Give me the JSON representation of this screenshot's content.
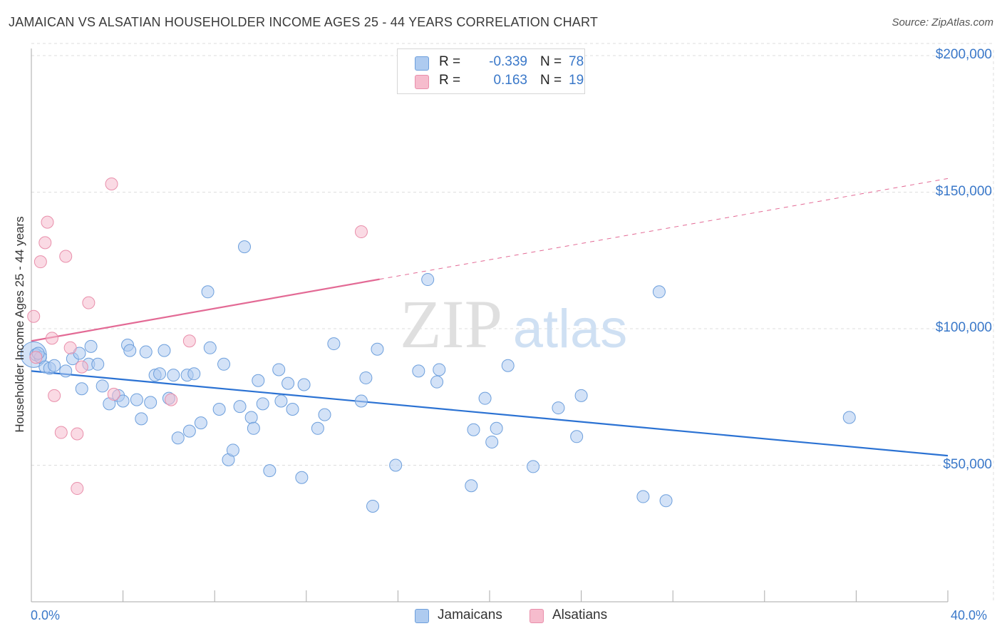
{
  "title": "JAMAICAN VS ALSATIAN HOUSEHOLDER INCOME AGES 25 - 44 YEARS CORRELATION CHART",
  "source": "Source: ZipAtlas.com",
  "watermark": {
    "zip": "ZIP",
    "atlas": "atlas"
  },
  "colors": {
    "blue_fill": "#aecbf0",
    "blue_stroke": "#6d9fdc",
    "blue_line": "#2b72d3",
    "pink_fill": "#f6bccd",
    "pink_stroke": "#e98fab",
    "pink_line": "#e36a95",
    "axis_text": "#3a78c9",
    "grid": "#dddddd"
  },
  "legend": {
    "rows": [
      {
        "label": "R = ",
        "r": "-0.339",
        "n_label": "N = ",
        "n": "78"
      },
      {
        "label": "R = ",
        "r": "0.163",
        "n_label": "N = ",
        "n": "19"
      }
    ]
  },
  "bottom_legend": {
    "jamaicans": "Jamaicans",
    "alsatians": "Alsatians"
  },
  "chart_data": {
    "type": "scatter",
    "title": "JAMAICAN VS ALSATIAN HOUSEHOLDER INCOME AGES 25 - 44 YEARS CORRELATION CHART",
    "xlabel": "",
    "ylabel": "Householder Income Ages 25 - 44 years",
    "xlim": [
      0,
      40
    ],
    "ylim": [
      0,
      205000
    ],
    "x_tick_labels": [
      "0.0%",
      "40.0%"
    ],
    "y_ticks": [
      50000,
      100000,
      150000,
      200000
    ],
    "y_tick_labels": [
      "$50,000",
      "$100,000",
      "$150,000",
      "$200,000"
    ],
    "grid": true,
    "legend_position": "top-center",
    "series": [
      {
        "name": "Jamaicans",
        "color": "#aecbf0",
        "trend": {
          "x": [
            0,
            40
          ],
          "y": [
            84500,
            53500
          ],
          "style": "solid"
        },
        "points": [
          [
            0.2,
            90500
          ],
          [
            0.4,
            89500
          ],
          [
            0.6,
            86000
          ],
          [
            0.8,
            85500
          ],
          [
            1.0,
            86500
          ],
          [
            1.5,
            84500
          ],
          [
            1.8,
            89000
          ],
          [
            2.1,
            91000
          ],
          [
            2.2,
            78000
          ],
          [
            2.5,
            87000
          ],
          [
            2.6,
            93500
          ],
          [
            2.9,
            87000
          ],
          [
            3.1,
            79000
          ],
          [
            3.4,
            72500
          ],
          [
            3.8,
            75500
          ],
          [
            4.0,
            73500
          ],
          [
            4.2,
            94000
          ],
          [
            4.3,
            92000
          ],
          [
            4.6,
            74000
          ],
          [
            4.8,
            67000
          ],
          [
            5.0,
            91500
          ],
          [
            5.2,
            73000
          ],
          [
            5.4,
            83000
          ],
          [
            5.6,
            83500
          ],
          [
            5.8,
            92000
          ],
          [
            6.0,
            74500
          ],
          [
            6.2,
            83000
          ],
          [
            6.4,
            60000
          ],
          [
            6.8,
            83000
          ],
          [
            6.9,
            62500
          ],
          [
            7.1,
            83500
          ],
          [
            7.4,
            65500
          ],
          [
            7.7,
            113500
          ],
          [
            7.8,
            93000
          ],
          [
            8.2,
            70500
          ],
          [
            8.4,
            87000
          ],
          [
            8.6,
            52000
          ],
          [
            8.8,
            55500
          ],
          [
            9.1,
            71500
          ],
          [
            9.3,
            130000
          ],
          [
            9.6,
            67500
          ],
          [
            9.7,
            63500
          ],
          [
            9.9,
            81000
          ],
          [
            10.1,
            72500
          ],
          [
            10.4,
            48000
          ],
          [
            10.8,
            85000
          ],
          [
            10.9,
            73500
          ],
          [
            11.2,
            80000
          ],
          [
            11.4,
            70500
          ],
          [
            11.8,
            45500
          ],
          [
            11.9,
            79500
          ],
          [
            12.5,
            63500
          ],
          [
            12.8,
            68500
          ],
          [
            13.2,
            94500
          ],
          [
            14.4,
            73500
          ],
          [
            14.6,
            82000
          ],
          [
            14.9,
            35000
          ],
          [
            15.1,
            92500
          ],
          [
            15.9,
            50000
          ],
          [
            16.9,
            84500
          ],
          [
            17.3,
            118000
          ],
          [
            17.7,
            80500
          ],
          [
            17.8,
            85000
          ],
          [
            19.2,
            42500
          ],
          [
            19.3,
            63000
          ],
          [
            19.8,
            74500
          ],
          [
            20.1,
            58500
          ],
          [
            20.3,
            63500
          ],
          [
            20.8,
            86500
          ],
          [
            21.9,
            49500
          ],
          [
            23.0,
            71000
          ],
          [
            23.8,
            60500
          ],
          [
            24.0,
            75500
          ],
          [
            26.7,
            38500
          ],
          [
            27.4,
            113500
          ],
          [
            27.7,
            37000
          ],
          [
            35.7,
            67500
          ],
          [
            0.3,
            91000
          ]
        ]
      },
      {
        "name": "Alsatians",
        "color": "#f6bccd",
        "trend": {
          "x": [
            0,
            40
          ],
          "y": [
            95500,
            155000
          ],
          "style": "solid to 15.2%, dashed beyond"
        },
        "points": [
          [
            0.1,
            104500
          ],
          [
            0.2,
            89500
          ],
          [
            0.4,
            124500
          ],
          [
            0.6,
            131500
          ],
          [
            0.7,
            139000
          ],
          [
            0.9,
            96500
          ],
          [
            1.0,
            75500
          ],
          [
            1.3,
            62000
          ],
          [
            1.5,
            126500
          ],
          [
            1.7,
            93000
          ],
          [
            2.0,
            41500
          ],
          [
            2.0,
            61500
          ],
          [
            2.2,
            86000
          ],
          [
            2.5,
            109500
          ],
          [
            3.5,
            153000
          ],
          [
            3.6,
            76000
          ],
          [
            6.1,
            74000
          ],
          [
            6.9,
            95500
          ],
          [
            14.4,
            135500
          ]
        ]
      }
    ]
  }
}
